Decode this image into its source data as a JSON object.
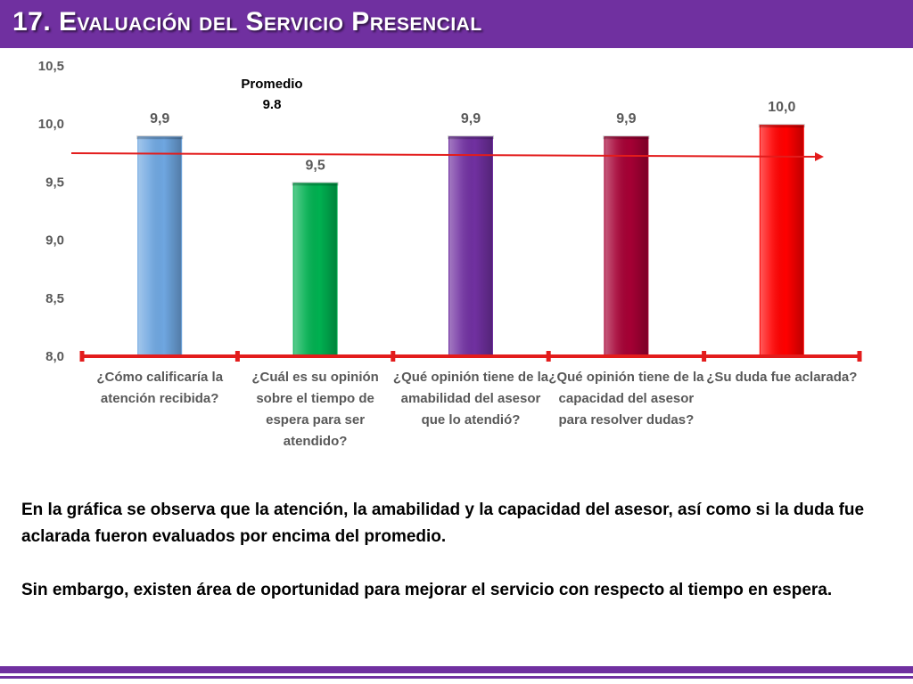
{
  "title": "17. Evaluación del Servicio Presencial",
  "colors": {
    "header": "#7030a0",
    "axis": "#e31c1c",
    "average_line": "#e31c1c"
  },
  "chart_data": {
    "type": "bar",
    "categories": [
      "¿Cómo calificaría la atención recibida?",
      "¿Cuál es su opinión sobre el tiempo de espera para ser atendido?",
      "¿Qué opinión tiene de la amabilidad del asesor que lo atendió?",
      "¿Qué opinión tiene de la capacidad del asesor para resolver dudas?",
      "¿Su duda fue aclarada?"
    ],
    "values": [
      9.9,
      9.5,
      9.9,
      9.9,
      10.0
    ],
    "value_labels": [
      "9,9",
      "9,5",
      "9,9",
      "9,9",
      "10,0"
    ],
    "bar_colors": [
      "#6ea6e0",
      "#00b050",
      "#7030a0",
      "#a50034",
      "#ff0000"
    ],
    "y_ticks": [
      "8,0",
      "8,5",
      "9,0",
      "9,5",
      "10,0",
      "10,5"
    ],
    "ylim": [
      8.0,
      10.5
    ],
    "average": {
      "label_line1": "Promedio",
      "label_line2": "9.8",
      "value": 9.8
    }
  },
  "summary": {
    "paragraph1": "En la gráfica se observa que la atención, la amabilidad y la capacidad del asesor, así como si la duda fue aclarada fueron evaluados por encima del promedio.",
    "paragraph2": "Sin embargo, existen área de oportunidad para mejorar el servicio con respecto al tiempo en espera."
  }
}
